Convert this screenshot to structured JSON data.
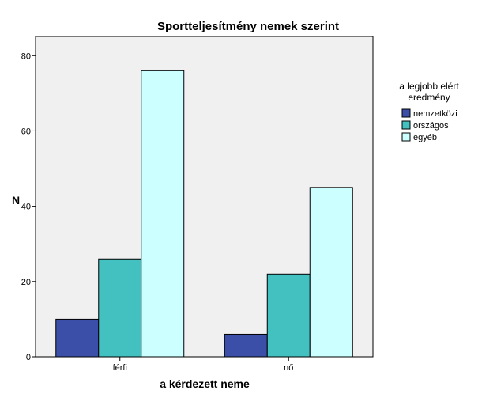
{
  "chart_data": {
    "type": "bar",
    "title": "Sportteljesítmény nemek szerint",
    "xlabel": "a kérdezett neme",
    "ylabel": "N",
    "categories": [
      "férfi",
      "nő"
    ],
    "ylim": [
      0,
      80
    ],
    "yticks": [
      "0",
      "20",
      "40",
      "60",
      "80"
    ],
    "grid": false,
    "legend": {
      "title_lines": [
        "a legjobb elért",
        "eredmény"
      ],
      "placement": "right"
    },
    "series": [
      {
        "name": "nemzetközi",
        "values": [
          10,
          6
        ],
        "color": "#3b4fa8"
      },
      {
        "name": "országos",
        "values": [
          26,
          22
        ],
        "color": "#43c0c0"
      },
      {
        "name": "egyéb",
        "values": [
          76,
          45
        ],
        "color": "#ccffff"
      }
    ],
    "plot_background": "#f0f0f0"
  }
}
